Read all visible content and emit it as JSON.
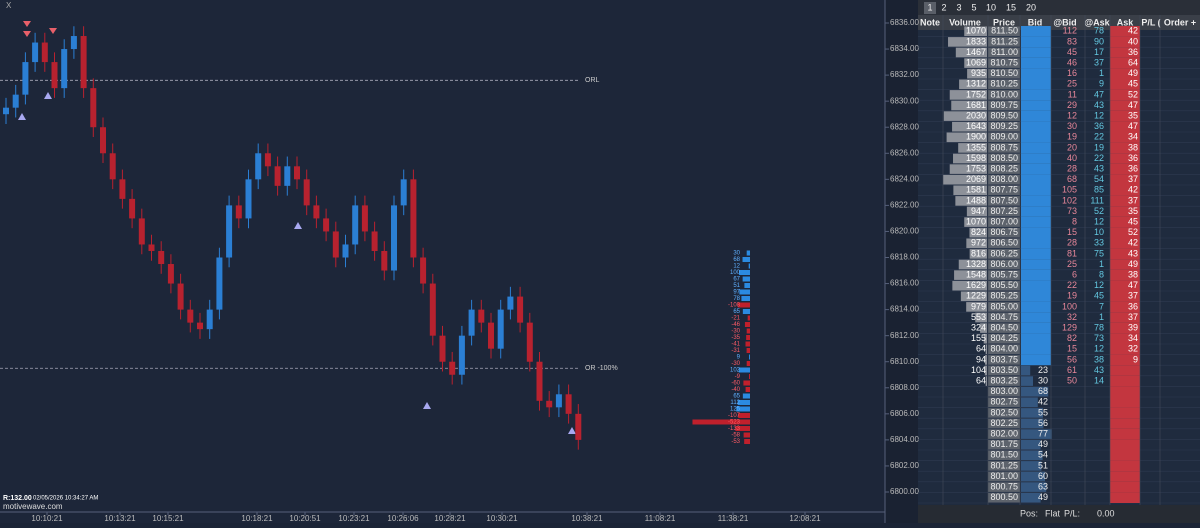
{
  "chart": {
    "close_label": "X",
    "price_ticks": [
      {
        "value": 6836,
        "label": "6836.00"
      },
      {
        "value": 6834,
        "label": "6834.00"
      },
      {
        "value": 6832,
        "label": "6832.00"
      },
      {
        "value": 6830,
        "label": "6830.00"
      },
      {
        "value": 6828,
        "label": "6828.00"
      },
      {
        "value": 6826,
        "label": "6826.00"
      },
      {
        "value": 6824,
        "label": "6824.00"
      },
      {
        "value": 6822,
        "label": "6822.00"
      },
      {
        "value": 6820,
        "label": "6820.00"
      },
      {
        "value": 6818,
        "label": "6818.00"
      },
      {
        "value": 6816,
        "label": "6816.00"
      },
      {
        "value": 6814,
        "label": "6814.00"
      },
      {
        "value": 6812,
        "label": "6812.00"
      },
      {
        "value": 6810,
        "label": "6810.00"
      },
      {
        "value": 6808,
        "label": "6808.00"
      },
      {
        "value": 6806,
        "label": "6806.00"
      },
      {
        "value": 6804,
        "label": "6804.00"
      },
      {
        "value": 6802,
        "label": "6802.00"
      },
      {
        "value": 6800,
        "label": "6800.00"
      }
    ],
    "time_labels": [
      "10:10:21",
      "10:13:21",
      "10:15:21",
      "10:18:21",
      "10:20:51",
      "10:23:21",
      "10:26:06",
      "10:28:21",
      "10:30:21",
      "10:38:21",
      "11:08:21",
      "11:38:21",
      "12:08:21"
    ],
    "levels": [
      {
        "label": "ORL",
        "price": 6831.6
      },
      {
        "label": "OR -100%",
        "price": 6809.5
      }
    ],
    "candles": [
      [
        6829,
        6830.25,
        6828.25,
        6829.5
      ],
      [
        6829.5,
        6831.25,
        6828.75,
        6830.5
      ],
      [
        6830.5,
        6833.75,
        6829.75,
        6833
      ],
      [
        6833,
        6835.25,
        6832.25,
        6834.5
      ],
      [
        6834.5,
        6835.25,
        6832.25,
        6833
      ],
      [
        6833,
        6833.75,
        6830.25,
        6831
      ],
      [
        6831,
        6834.75,
        6830.25,
        6834
      ],
      [
        6834,
        6835.75,
        6833.25,
        6835
      ],
      [
        6835,
        6835.75,
        6830.25,
        6831
      ],
      [
        6831,
        6831.75,
        6827.25,
        6828
      ],
      [
        6828,
        6828.75,
        6825.25,
        6826
      ],
      [
        6826,
        6826.75,
        6823.25,
        6824
      ],
      [
        6824,
        6824.75,
        6821.75,
        6822.5
      ],
      [
        6822.5,
        6823.25,
        6820.25,
        6821
      ],
      [
        6821,
        6821.75,
        6818.25,
        6819
      ],
      [
        6819,
        6819.75,
        6817.75,
        6818.5
      ],
      [
        6818.5,
        6819.25,
        6816.75,
        6817.5
      ],
      [
        6817.5,
        6818.25,
        6815.25,
        6816
      ],
      [
        6816,
        6816.75,
        6813.25,
        6814
      ],
      [
        6814,
        6814.75,
        6812.25,
        6813
      ],
      [
        6813,
        6813.75,
        6811.75,
        6812.5
      ],
      [
        6812.5,
        6814.75,
        6811.75,
        6814
      ],
      [
        6814,
        6818.75,
        6813.25,
        6818
      ],
      [
        6818,
        6822.75,
        6817.25,
        6822
      ],
      [
        6822,
        6822.75,
        6820.25,
        6821
      ],
      [
        6821,
        6824.75,
        6820.25,
        6824
      ],
      [
        6824,
        6826.75,
        6823.25,
        6826
      ],
      [
        6826,
        6826.75,
        6824.25,
        6825
      ],
      [
        6825,
        6825.75,
        6822.75,
        6823.5
      ],
      [
        6823.5,
        6825.75,
        6822.75,
        6825
      ],
      [
        6825,
        6825.75,
        6823.25,
        6824
      ],
      [
        6824,
        6824.75,
        6821.25,
        6822
      ],
      [
        6822,
        6822.75,
        6820.25,
        6821
      ],
      [
        6821,
        6821.75,
        6819.25,
        6820
      ],
      [
        6820,
        6820.75,
        6817.25,
        6818
      ],
      [
        6818,
        6819.75,
        6817.25,
        6819
      ],
      [
        6819,
        6822.75,
        6818.25,
        6822
      ],
      [
        6822,
        6822.75,
        6819.25,
        6820
      ],
      [
        6820,
        6820.75,
        6817.75,
        6818.5
      ],
      [
        6818.5,
        6819.25,
        6816.25,
        6817
      ],
      [
        6817,
        6822.75,
        6816.25,
        6822
      ],
      [
        6822,
        6824.75,
        6821.25,
        6824
      ],
      [
        6824,
        6824.75,
        6817.25,
        6818
      ],
      [
        6818,
        6818.75,
        6815.25,
        6816
      ],
      [
        6816,
        6816.75,
        6811.25,
        6812
      ],
      [
        6812,
        6812.75,
        6809.25,
        6810
      ],
      [
        6810,
        6810.75,
        6808.25,
        6809
      ],
      [
        6809,
        6812.75,
        6808.25,
        6812
      ],
      [
        6812,
        6814.75,
        6811.25,
        6814
      ],
      [
        6814,
        6814.75,
        6812.25,
        6813
      ],
      [
        6813,
        6813.75,
        6810.25,
        6811
      ],
      [
        6811,
        6814.75,
        6810.25,
        6814
      ],
      [
        6814,
        6815.75,
        6813.25,
        6815
      ],
      [
        6815,
        6815.75,
        6812.25,
        6813
      ],
      [
        6813,
        6813.75,
        6809.25,
        6810
      ],
      [
        6810,
        6810.75,
        6806.25,
        6807
      ],
      [
        6807,
        6807.75,
        6805.75,
        6806.5
      ],
      [
        6806.5,
        6808.25,
        6805.75,
        6807.5
      ],
      [
        6807.5,
        6808.25,
        6805.25,
        6806
      ],
      [
        6806,
        6806.75,
        6803.25,
        6804
      ]
    ],
    "flow": [
      30,
      68,
      12,
      100,
      67,
      51,
      97,
      78,
      -108,
      65,
      -21,
      -46,
      -30,
      -35,
      -41,
      -31,
      9,
      -30,
      102,
      -9,
      -60,
      -40,
      65,
      112,
      125,
      -107,
      -523,
      -133,
      -58,
      -53
    ],
    "status": {
      "range": "R:132.00",
      "timestamp": "02/05/2026 10:34:27 AM",
      "site": "motivewave.com"
    }
  },
  "dom": {
    "tabs": [
      "1",
      "2",
      "3",
      "5",
      "10",
      "15",
      "20"
    ],
    "headers": [
      "Note",
      "Volume",
      "Price",
      "Bid",
      "@Bid",
      "@Ask",
      "Ask",
      "P/L (",
      "Order +"
    ],
    "rows": [
      {
        "volume": 1070,
        "price": "811.50",
        "at_bid": 112,
        "at_ask": 78,
        "ask": 42
      },
      {
        "volume": 1833,
        "price": "811.25",
        "at_bid": 83,
        "at_ask": 90,
        "ask": 40
      },
      {
        "volume": 1467,
        "price": "811.00",
        "at_bid": 45,
        "at_ask": 17,
        "ask": 36
      },
      {
        "volume": 1069,
        "price": "810.75",
        "at_bid": 46,
        "at_ask": 37,
        "ask": 64
      },
      {
        "volume": 935,
        "price": "810.50",
        "at_bid": 16,
        "at_ask": 1,
        "ask": 49
      },
      {
        "volume": 1312,
        "price": "810.25",
        "at_bid": 25,
        "at_ask": 9,
        "ask": 45
      },
      {
        "volume": 1752,
        "price": "810.00",
        "at_bid": 11,
        "at_ask": 47,
        "ask": 52
      },
      {
        "volume": 1681,
        "price": "809.75",
        "at_bid": 29,
        "at_ask": 43,
        "ask": 47
      },
      {
        "volume": 2030,
        "price": "809.50",
        "at_bid": 12,
        "at_ask": 12,
        "ask": 35
      },
      {
        "volume": 1643,
        "price": "809.25",
        "at_bid": 30,
        "at_ask": 36,
        "ask": 47
      },
      {
        "volume": 1900,
        "price": "809.00",
        "at_bid": 19,
        "at_ask": 22,
        "ask": 34
      },
      {
        "volume": 1355,
        "price": "808.75",
        "at_bid": 20,
        "at_ask": 19,
        "ask": 38
      },
      {
        "volume": 1598,
        "price": "808.50",
        "at_bid": 40,
        "at_ask": 22,
        "ask": 36
      },
      {
        "volume": 1753,
        "price": "808.25",
        "at_bid": 28,
        "at_ask": 43,
        "ask": 36
      },
      {
        "volume": 2069,
        "price": "808.00",
        "at_bid": 68,
        "at_ask": 54,
        "ask": 37
      },
      {
        "volume": 1581,
        "price": "807.75",
        "at_bid": 105,
        "at_ask": 85,
        "ask": 42
      },
      {
        "volume": 1488,
        "price": "807.50",
        "at_bid": 102,
        "at_ask": 111,
        "ask": 37
      },
      {
        "volume": 947,
        "price": "807.25",
        "at_bid": 73,
        "at_ask": 52,
        "ask": 35
      },
      {
        "volume": 1070,
        "price": "807.00",
        "at_bid": 8,
        "at_ask": 12,
        "ask": 45
      },
      {
        "volume": 824,
        "price": "806.75",
        "at_bid": 15,
        "at_ask": 10,
        "ask": 52
      },
      {
        "volume": 972,
        "price": "806.50",
        "at_bid": 28,
        "at_ask": 33,
        "ask": 42
      },
      {
        "volume": 816,
        "price": "806.25",
        "at_bid": 81,
        "at_ask": 75,
        "ask": 43
      },
      {
        "volume": 1328,
        "price": "806.00",
        "at_bid": 25,
        "at_ask": 1,
        "ask": 49
      },
      {
        "volume": 1548,
        "price": "805.75",
        "at_bid": 6,
        "at_ask": 8,
        "ask": 38
      },
      {
        "volume": 1629,
        "price": "805.50",
        "at_bid": 22,
        "at_ask": 12,
        "ask": 47
      },
      {
        "volume": 1229,
        "price": "805.25",
        "at_bid": 19,
        "at_ask": 45,
        "ask": 37
      },
      {
        "volume": 979,
        "price": "805.00",
        "at_bid": 100,
        "at_ask": 7,
        "ask": 36
      },
      {
        "volume": 553,
        "price": "804.75",
        "at_bid": 32,
        "at_ask": 1,
        "ask": 37
      },
      {
        "volume": 324,
        "price": "804.50",
        "at_bid": 129,
        "at_ask": 78,
        "ask": 39
      },
      {
        "volume": 155,
        "price": "804.25",
        "at_bid": 82,
        "at_ask": 73,
        "ask": 34
      },
      {
        "volume": 64,
        "price": "804.00",
        "at_bid": 15,
        "at_ask": 12,
        "ask": 32
      },
      {
        "volume": 94,
        "price": "803.75",
        "at_bid": 56,
        "at_ask": 38,
        "ask": 9
      },
      {
        "volume": 104,
        "price": "803.50",
        "bid": 23,
        "at_bid": 61,
        "at_ask": 43
      },
      {
        "volume": 64,
        "price": "803.25",
        "bid": 30,
        "at_bid": 50,
        "at_ask": 14
      },
      {
        "price": "803.00",
        "bid": 68
      },
      {
        "price": "802.75",
        "bid": 42
      },
      {
        "price": "802.50",
        "bid": 55
      },
      {
        "price": "802.25",
        "bid": 56
      },
      {
        "price": "802.00",
        "bid": 77
      },
      {
        "price": "801.75",
        "bid": 49
      },
      {
        "price": "801.50",
        "bid": 54
      },
      {
        "price": "801.25",
        "bid": 51
      },
      {
        "price": "801.00",
        "bid": 60
      },
      {
        "price": "800.75",
        "bid": 63
      },
      {
        "price": "800.50",
        "bid": 49
      }
    ],
    "footer": {
      "pos_label": "Pos:",
      "pos": "Flat",
      "pl_label": "P/L:",
      "pl": "0.00"
    }
  }
}
